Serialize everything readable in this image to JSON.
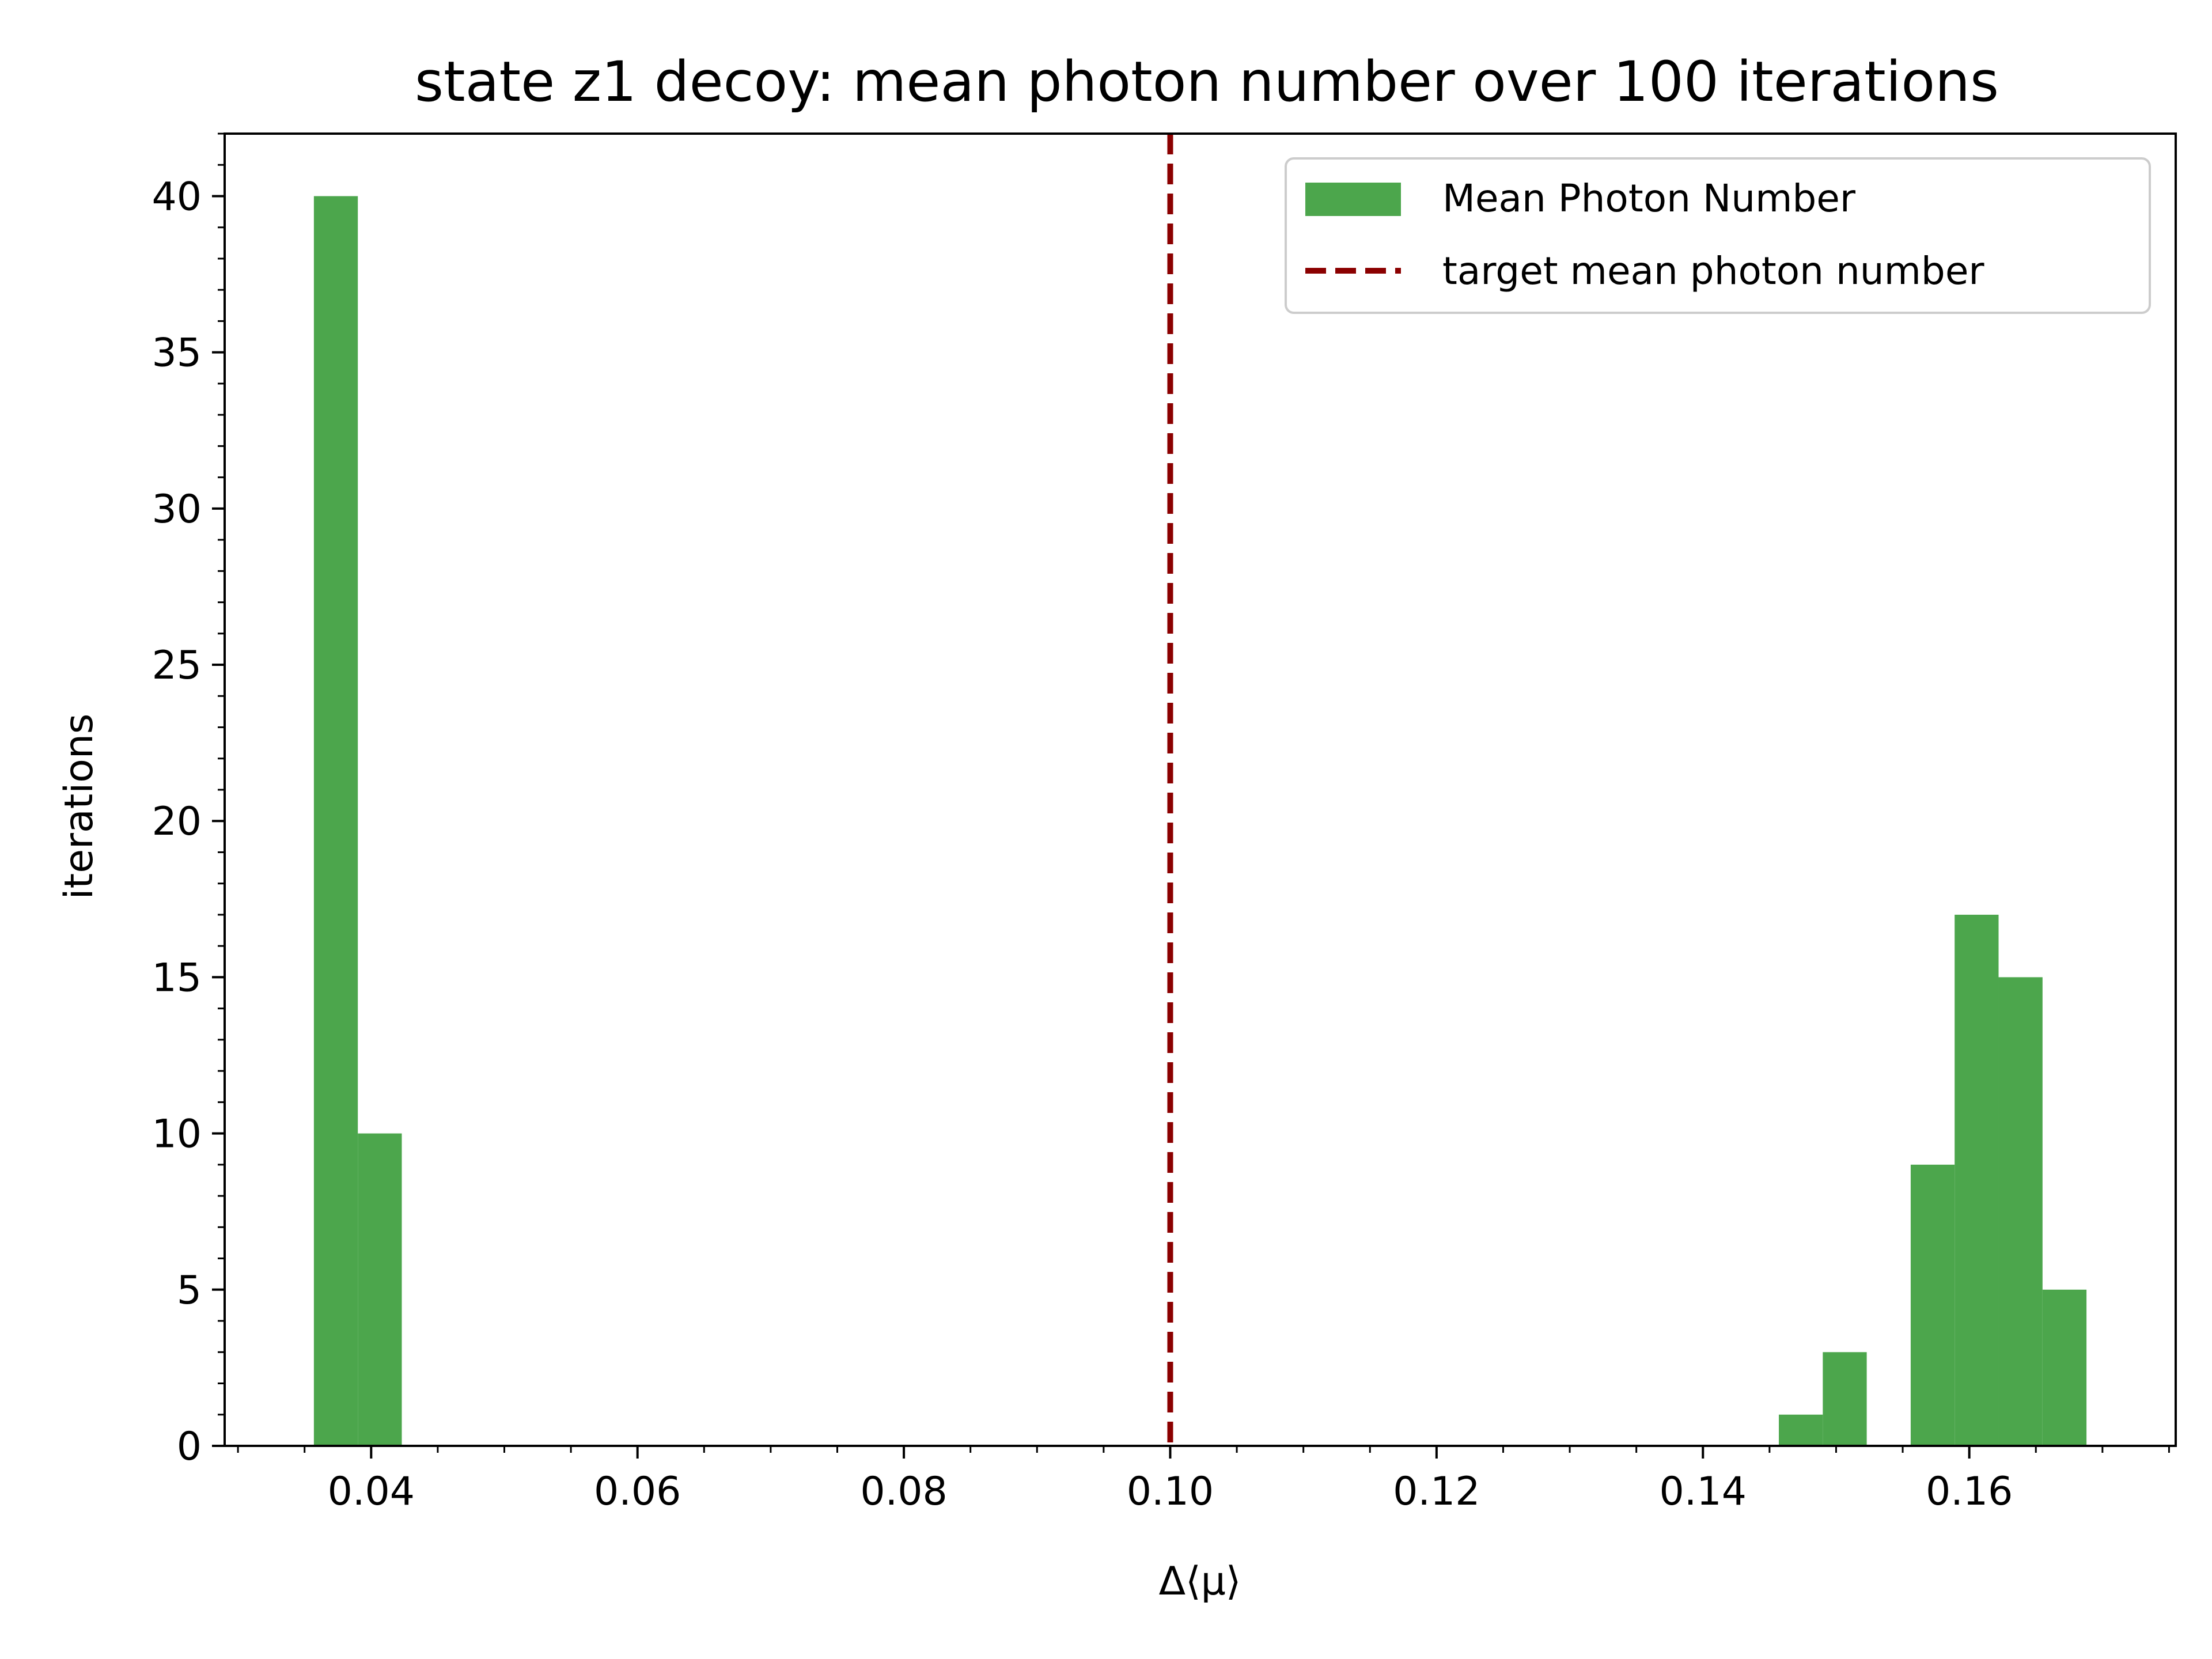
{
  "chart_data": {
    "type": "bar",
    "title": "state z1 decoy: mean photon number over 100 iterations",
    "xlabel": "Δ⟨μ⟩",
    "ylabel": "iterations",
    "xlim": [
      0.029,
      0.1755
    ],
    "ylim": [
      0,
      42
    ],
    "xticks": [
      0.04,
      0.06,
      0.08,
      0.1,
      0.12,
      0.14,
      0.16
    ],
    "xtick_labels": [
      "0.04",
      "0.06",
      "0.08",
      "0.10",
      "0.12",
      "0.14",
      "0.16"
    ],
    "yticks": [
      0,
      5,
      10,
      15,
      20,
      25,
      30,
      35,
      40
    ],
    "ytick_labels": [
      "0",
      "5",
      "10",
      "15",
      "20",
      "25",
      "30",
      "35",
      "40"
    ],
    "bar_color": "#4ca64c",
    "bins": [
      {
        "x0": 0.0357,
        "x1": 0.039,
        "count": 40
      },
      {
        "x0": 0.039,
        "x1": 0.0423,
        "count": 10
      },
      {
        "x0": 0.1457,
        "x1": 0.149,
        "count": 1
      },
      {
        "x0": 0.149,
        "x1": 0.1523,
        "count": 3
      },
      {
        "x0": 0.1556,
        "x1": 0.1589,
        "count": 9
      },
      {
        "x0": 0.1589,
        "x1": 0.1622,
        "count": 17
      },
      {
        "x0": 0.1622,
        "x1": 0.1655,
        "count": 15
      },
      {
        "x0": 0.1655,
        "x1": 0.1688,
        "count": 5
      }
    ],
    "series": [
      {
        "name": "Mean Photon Number",
        "type": "histogram",
        "color": "#4ca64c"
      }
    ],
    "reference_lines": [
      {
        "name": "target mean photon number",
        "x": 0.1,
        "style": "dashed",
        "color": "#8b0000"
      }
    ],
    "legend": {
      "position": "top-right",
      "entries": [
        "Mean Photon Number",
        "target mean photon number"
      ]
    },
    "grid": false
  }
}
